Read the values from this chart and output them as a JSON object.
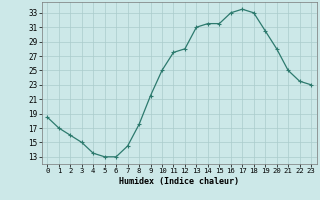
{
  "x": [
    0,
    1,
    2,
    3,
    4,
    5,
    6,
    7,
    8,
    9,
    10,
    11,
    12,
    13,
    14,
    15,
    16,
    17,
    18,
    19,
    20,
    21,
    22,
    23
  ],
  "y": [
    18.5,
    17.0,
    16.0,
    15.0,
    13.5,
    13.0,
    13.0,
    14.5,
    17.5,
    21.5,
    25.0,
    27.5,
    28.0,
    31.0,
    31.5,
    31.5,
    33.0,
    33.5,
    33.0,
    30.5,
    28.0,
    25.0,
    23.5,
    23.0
  ],
  "line_color": "#2d7a6e",
  "marker": "+",
  "marker_size": 3,
  "marker_linewidth": 0.8,
  "line_width": 0.9,
  "background_color": "#cce8e8",
  "grid_color": "#aacccc",
  "xlabel": "Humidex (Indice chaleur)",
  "ylabel_ticks": [
    13,
    15,
    17,
    19,
    21,
    23,
    25,
    27,
    29,
    31,
    33
  ],
  "xtick_labels": [
    "0",
    "1",
    "2",
    "3",
    "4",
    "5",
    "6",
    "7",
    "8",
    "9",
    "10",
    "11",
    "12",
    "13",
    "14",
    "15",
    "16",
    "17",
    "18",
    "19",
    "20",
    "21",
    "22",
    "23"
  ],
  "ylim": [
    12.0,
    34.5
  ],
  "xlim": [
    -0.5,
    23.5
  ]
}
